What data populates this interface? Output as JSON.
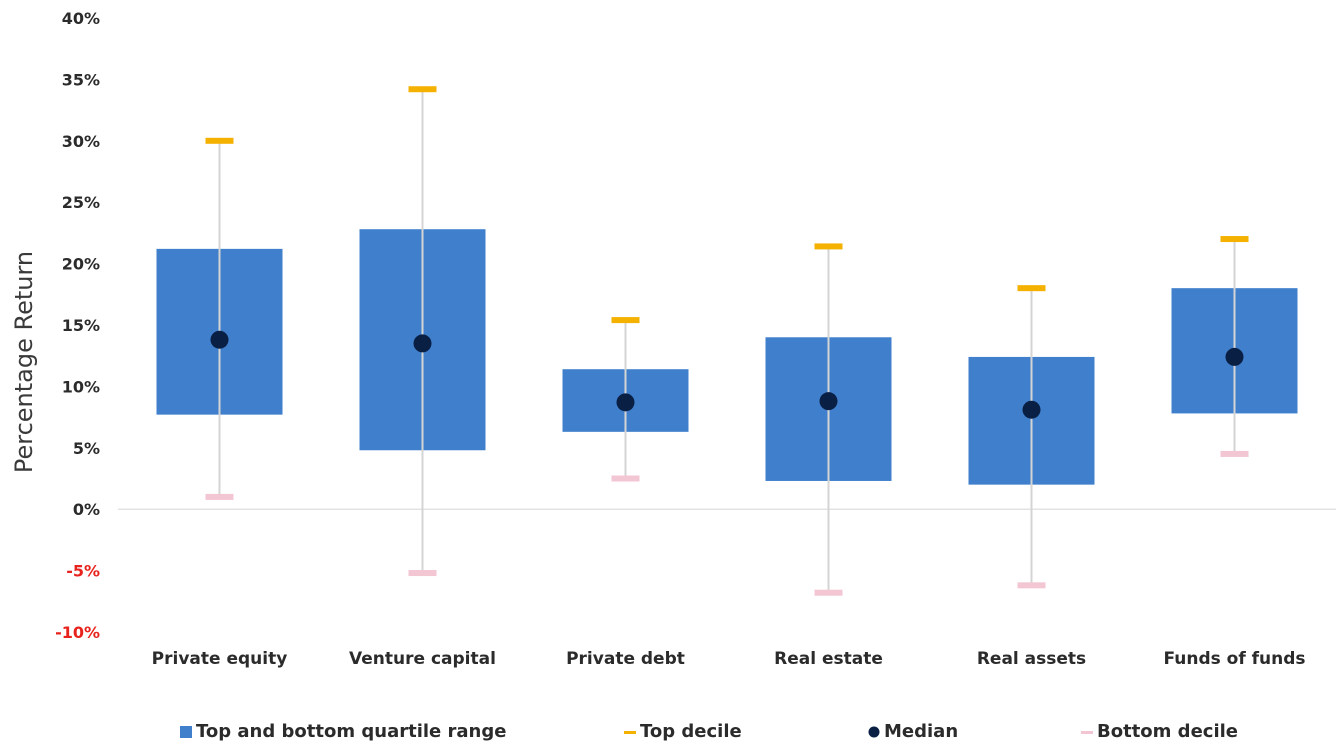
{
  "chart_data": {
    "type": "box",
    "ylabel": "Percentage Return",
    "xlabel": "",
    "ylim": [
      -10,
      40
    ],
    "yticks": [
      40,
      35,
      30,
      25,
      20,
      15,
      10,
      5,
      0,
      -5,
      -10
    ],
    "ytick_labels": [
      "40%",
      "35%",
      "30%",
      "25%",
      "20%",
      "15%",
      "10%",
      "5%",
      "0%",
      "-5%",
      "-10%"
    ],
    "categories": [
      "Private equity",
      "Venture capital",
      "Private debt",
      "Real estate",
      "Real assets",
      "Funds of funds"
    ],
    "series": [
      {
        "name": "Top and bottom quartile range",
        "low": [
          7.7,
          4.8,
          6.3,
          2.3,
          2.0,
          7.8
        ],
        "high": [
          21.2,
          22.8,
          11.4,
          14.0,
          12.4,
          18.0
        ]
      },
      {
        "name": "Top decile",
        "values": [
          30.0,
          34.2,
          15.4,
          21.4,
          18.0,
          22.0
        ]
      },
      {
        "name": "Median",
        "values": [
          13.8,
          13.5,
          8.7,
          8.8,
          8.1,
          12.4
        ]
      },
      {
        "name": "Bottom decile",
        "values": [
          1.0,
          -5.2,
          2.5,
          -6.8,
          -6.2,
          4.5
        ]
      }
    ],
    "grid": false,
    "legend_position": "bottom",
    "colors": {
      "box": "#3f7fcc",
      "top_decile": "#f5b100",
      "median": "#0a1f44",
      "bottom_decile": "#f3c6d3",
      "whisker": "#d4d4d4",
      "negative_tick": "#e8231e"
    }
  }
}
